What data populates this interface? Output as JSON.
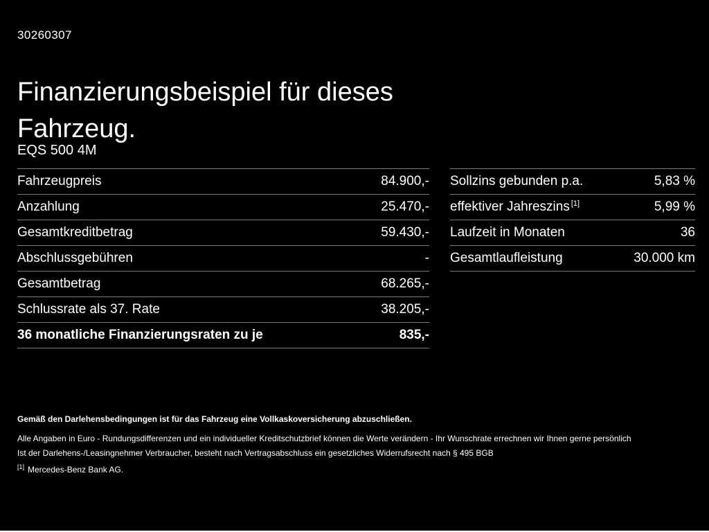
{
  "page": {
    "id_number": "30260307",
    "title": "Finanzierungsbeispiel für dieses Fahrzeug.",
    "model": "EQS 500 4M"
  },
  "finance_table": {
    "rows": [
      {
        "label": "Fahrzeugpreis",
        "value": "84.900,-"
      },
      {
        "label": "Anzahlung",
        "value": "25.470,-"
      },
      {
        "label": "Gesamtkreditbetrag",
        "value": "59.430,-"
      },
      {
        "label": "Abschlussgebühren",
        "value": "-"
      },
      {
        "label": "Gesamtbetrag",
        "value": "68.265,-"
      },
      {
        "label": "Schlussrate als 37. Rate",
        "value": "38.205,-"
      },
      {
        "label": "36 monatliche Finanzierungsraten zu je",
        "value": "835,-"
      }
    ]
  },
  "conditions_table": {
    "rows": [
      {
        "label": "Sollzins gebunden p.a.",
        "marker": "",
        "value": "5,83 %"
      },
      {
        "label": "effektiver Jahreszins",
        "marker": "[1]",
        "value": "5,99 %"
      },
      {
        "label": "Laufzeit in Monaten",
        "marker": "",
        "value": "36"
      },
      {
        "label": "Gesamtlaufleistung",
        "marker": "",
        "value": "30.000 km"
      }
    ]
  },
  "footer": {
    "line1": "Gemäß den Darlehensbedingungen ist für das Fahrzeug eine Vollkaskoversicherung abzuschließen.",
    "line2": "Alle Angaben in Euro - Rundungsdifferenzen und ein individueller Kreditschutzbrief können die Werte verändern - Ihr Wunschrate errechnen wir Ihnen gerne persönlich",
    "line3": "Ist der Darlehens-/Leasingnehmer Verbraucher, besteht nach Vertragsabschluss ein gesetzliches Widerrufsrecht nach § 495 BGB",
    "footnote_marker": "[1]",
    "footnote_text": "Mercedes-Benz Bank AG."
  },
  "colors": {
    "background": "#000000",
    "text": "#ffffff",
    "divider": "#7b7b7b"
  }
}
